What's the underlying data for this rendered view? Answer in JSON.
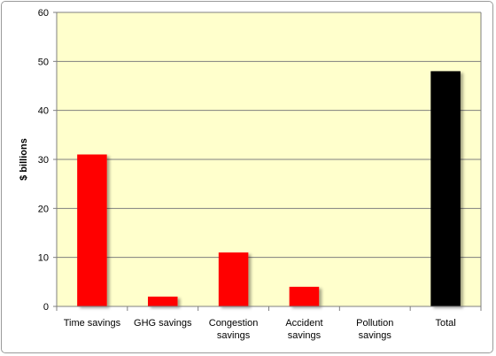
{
  "chart_data": {
    "type": "bar",
    "title": "",
    "xlabel": "",
    "ylabel": "$ billions",
    "ylim": [
      0,
      60
    ],
    "yticks": [
      0,
      10,
      20,
      30,
      40,
      50,
      60
    ],
    "grid": true,
    "legend": "none",
    "categories": [
      [
        "Time savings"
      ],
      [
        "GHG savings"
      ],
      [
        "Congestion",
        "savings"
      ],
      [
        "Accident",
        "savings"
      ],
      [
        "Pollution",
        "savings"
      ],
      [
        "Total"
      ]
    ],
    "values": [
      31,
      2,
      11,
      4,
      0,
      48
    ],
    "colors": [
      "#ff0000",
      "#ff0000",
      "#ff0000",
      "#ff0000",
      "#ff0000",
      "#000000"
    ],
    "plot_background": "#ffffcc"
  }
}
